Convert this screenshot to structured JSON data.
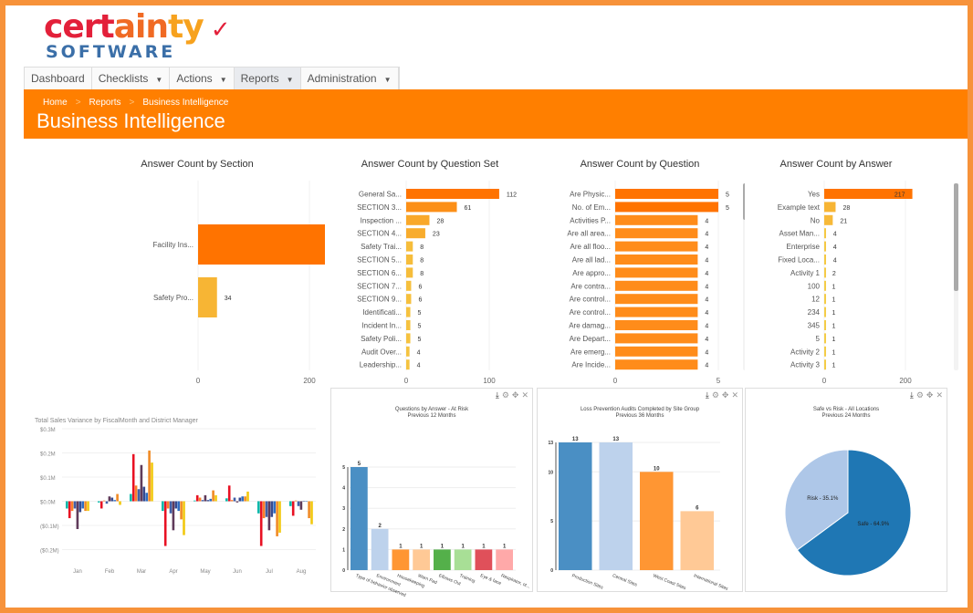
{
  "logo": {
    "line1": "certainty",
    "line2": "SOFTWARE"
  },
  "nav": [
    {
      "label": "Dashboard",
      "dropdown": false
    },
    {
      "label": "Checklists",
      "dropdown": true
    },
    {
      "label": "Actions",
      "dropdown": true
    },
    {
      "label": "Reports",
      "dropdown": true,
      "active": true
    },
    {
      "label": "Administration",
      "dropdown": true
    }
  ],
  "breadcrumb": [
    "Home",
    "Reports",
    "Business Intelligence"
  ],
  "page_title": "Business Intelligence",
  "colors": {
    "accent": "#FF7F00",
    "frame": "#F7923A",
    "bar_high": "#FF7300",
    "bar_low": "#F4CC45"
  },
  "chart_data": [
    {
      "id": "c1",
      "type": "bar",
      "orientation": "horizontal",
      "title": "Answer Count by Section",
      "categories": [
        "Facility Ins...",
        "Safety Pro..."
      ],
      "values": [
        264,
        34
      ],
      "ticks": [
        0,
        200
      ],
      "xlim": [
        0,
        264
      ]
    },
    {
      "id": "c2",
      "type": "bar",
      "orientation": "horizontal",
      "title": "Answer Count by Question Set",
      "categories": [
        "General Sa...",
        "SECTION 3...",
        "Inspection ...",
        "SECTION 4...",
        "Safety Trai...",
        "SECTION 5...",
        "SECTION 6...",
        "SECTION 7...",
        "SECTION 9...",
        "Identificati...",
        "Incident In...",
        "Safety Poli...",
        "Audit Over...",
        "Leadership..."
      ],
      "values": [
        112,
        61,
        28,
        23,
        8,
        8,
        8,
        6,
        6,
        5,
        5,
        5,
        4,
        4
      ],
      "ticks": [
        0,
        100
      ],
      "xlim": [
        0,
        112
      ]
    },
    {
      "id": "c3",
      "type": "bar",
      "orientation": "horizontal",
      "title": "Answer Count by Question",
      "categories": [
        "Are Physic...",
        "No. of Em...",
        "Activities P...",
        "Are all area...",
        "Are all floo...",
        "Are all lad...",
        "Are appro...",
        "Are contra...",
        "Are control...",
        "Are control...",
        "Are damag...",
        "Are Depart...",
        "Are emerg...",
        "Are Incide..."
      ],
      "values": [
        5,
        5,
        4,
        4,
        4,
        4,
        4,
        4,
        4,
        4,
        4,
        4,
        4,
        4
      ],
      "ticks": [
        0,
        5
      ],
      "xlim": [
        0,
        5
      ]
    },
    {
      "id": "c4",
      "type": "bar",
      "orientation": "horizontal",
      "title": "Answer Count by Answer",
      "categories": [
        "Yes",
        "Example text",
        "No",
        "Asset Man...",
        "Enterprise",
        "Fixed Loca...",
        "Activity 1",
        "100",
        "12",
        "234",
        "345",
        "5",
        "Activity 2",
        "Activity 3"
      ],
      "values": [
        217,
        28,
        21,
        4,
        4,
        4,
        2,
        1,
        1,
        1,
        1,
        1,
        1,
        1
      ],
      "ticks": [
        0,
        200
      ],
      "xlim": [
        0,
        217
      ]
    },
    {
      "id": "c5",
      "type": "bar",
      "title": "Total Sales Variance by FiscalMonth and District Manager",
      "categories": [
        "Jan",
        "Feb",
        "Mar",
        "Apr",
        "May",
        "Jun",
        "Jul",
        "Aug"
      ],
      "yticks": [
        "$0.3M",
        "$0.2M",
        "$0.1M",
        "$0.0M",
        "($0.1M)",
        "($0.2M)"
      ],
      "ylim": [
        -0.2,
        0.2
      ],
      "unit": "$M",
      "series_colors": [
        "#01B8AA",
        "#E81123",
        "#FD7F2A",
        "#3F5FA8",
        "#5F3A5A",
        "#374A8F",
        "#2F6DC4",
        "#F08A24",
        "#F2C80F"
      ],
      "series": [
        {
          "values": [
            -0.03,
            -0.005,
            0.03,
            -0.04,
            0.003,
            0.012,
            -0.05,
            -0.02
          ]
        },
        {
          "values": [
            -0.07,
            -0.03,
            0.195,
            -0.185,
            0.025,
            0.065,
            -0.185,
            -0.06
          ]
        },
        {
          "values": [
            -0.04,
            0.003,
            0.065,
            -0.03,
            0.015,
            0.005,
            -0.07,
            0.003
          ]
        },
        {
          "values": [
            -0.03,
            -0.01,
            0.05,
            -0.05,
            0.005,
            0.015,
            -0.065,
            -0.02
          ]
        },
        {
          "values": [
            -0.115,
            0.02,
            0.15,
            -0.12,
            0.025,
            -0.005,
            -0.12,
            -0.035
          ]
        },
        {
          "values": [
            -0.045,
            0.015,
            0.06,
            -0.03,
            0.005,
            0.015,
            -0.065,
            0.002
          ]
        },
        {
          "values": [
            -0.03,
            0.005,
            0.035,
            -0.04,
            0.01,
            0.02,
            -0.05,
            0
          ]
        },
        {
          "values": [
            -0.04,
            0.03,
            0.21,
            -0.075,
            0.045,
            0.02,
            -0.145,
            -0.07
          ]
        },
        {
          "values": [
            -0.04,
            -0.015,
            0.16,
            -0.14,
            0.025,
            0.04,
            -0.13,
            -0.095
          ]
        }
      ]
    },
    {
      "id": "c6",
      "type": "bar",
      "title": "Questions by Answer - At Risk",
      "subtitle": "Previous 12 Months",
      "categories": [
        "Type of behavior observed",
        "Environment",
        "Housekeeping",
        "Warn Pad",
        "Elbows Out",
        "Training",
        "Eye & face",
        "Respirator, ot..."
      ],
      "values": [
        5,
        2,
        1,
        1,
        1,
        1,
        1,
        1
      ],
      "ticks": [
        0,
        1,
        2,
        3,
        4,
        5
      ],
      "ylim": [
        0,
        5
      ],
      "bar_colors": [
        "#4A8FC4",
        "#BDD2EC",
        "#FF9633",
        "#FFC996",
        "#54B04A",
        "#A8DF96",
        "#E0505A",
        "#FFA9A9"
      ]
    },
    {
      "id": "c7",
      "type": "bar",
      "title": "Loss Prevention Audits Completed by Site Group",
      "subtitle": "Previous 36 Months",
      "categories": [
        "Production Sites",
        "Central Sites",
        "West Coast Sites",
        "International Sites"
      ],
      "values": [
        13,
        13,
        10,
        6
      ],
      "ticks": [
        0,
        5,
        10,
        13
      ],
      "ylim": [
        0,
        13
      ],
      "bar_colors": [
        "#4A8FC4",
        "#BDD2EC",
        "#FF9633",
        "#FFC996"
      ]
    },
    {
      "id": "c8",
      "type": "pie",
      "title": "Safe vs Risk - All Locations",
      "subtitle": "Previous 24 Months",
      "slices": [
        {
          "label": "Safe - 64.9%",
          "value": 64.9,
          "color": "#1F77B4"
        },
        {
          "label": "Risk - 35.1%",
          "value": 35.1,
          "color": "#AEC7E8"
        }
      ]
    }
  ],
  "tools": {
    "download": "download-icon",
    "settings": "gear-icon",
    "expand": "move-icon",
    "close": "close-icon"
  }
}
